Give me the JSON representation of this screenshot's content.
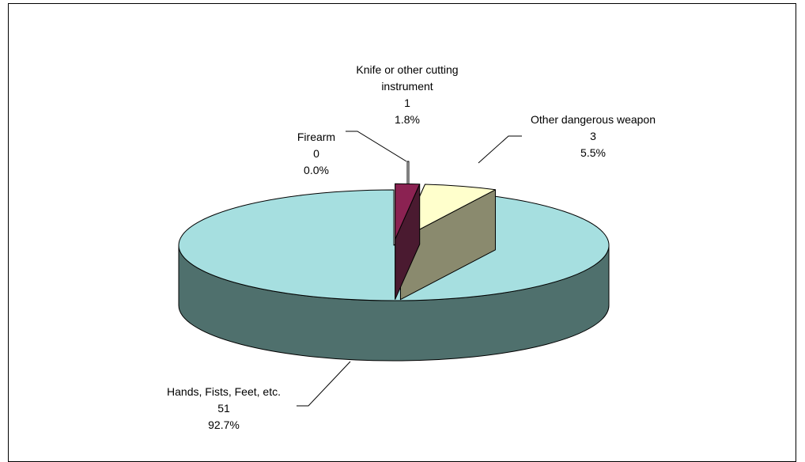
{
  "chart_data": {
    "type": "pie",
    "style": "3d-exploded",
    "title": "",
    "legend": "none",
    "slices": [
      {
        "name": "Firearm",
        "value": 0,
        "percent": "0.0%",
        "color": "#ffffff",
        "side_color": "#ffffff"
      },
      {
        "name": "Knife or other cutting instrument",
        "value": 1,
        "percent": "1.8%",
        "color": "#8b2252",
        "side_color": "#4a1a30"
      },
      {
        "name": "Other dangerous weapon",
        "value": 3,
        "percent": "5.5%",
        "color": "#ffffcc",
        "side_color": "#8a8a6e"
      },
      {
        "name": "Hands, Fists, Feet, etc.",
        "value": 51,
        "percent": "92.7%",
        "color": "#a6dfe0",
        "side_color": "#4f706d"
      }
    ],
    "labels": [
      {
        "lines": [
          "Firearm"
        ],
        "value": "0",
        "percent": "0.0%"
      },
      {
        "lines": [
          "Knife or other cutting",
          "instrument"
        ],
        "value": "1",
        "percent": "1.8%"
      },
      {
        "lines": [
          "Other dangerous weapon"
        ],
        "value": "3",
        "percent": "5.5%"
      },
      {
        "lines": [
          "Hands, Fists, Feet, etc."
        ],
        "value": "51",
        "percent": "92.7%"
      }
    ]
  }
}
